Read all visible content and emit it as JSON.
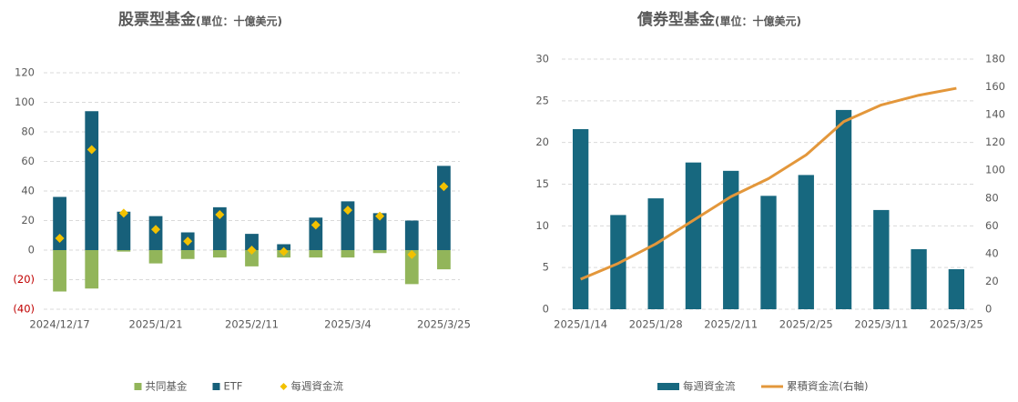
{
  "chart_data": [
    {
      "type": "bar",
      "title": "股票型基金",
      "unit": "(單位：十億美元)",
      "stacked": true,
      "grid": true,
      "categories": [
        "2024/12/17",
        null,
        null,
        "2025/1/21",
        null,
        null,
        "2025/2/11",
        null,
        null,
        "2025/3/4",
        null,
        null,
        "2025/3/25"
      ],
      "ylim": [
        -40,
        120
      ],
      "yticks": [
        {
          "value": -40,
          "label": "(40)"
        },
        {
          "value": -20,
          "label": "(20)"
        },
        0,
        20,
        40,
        60,
        80,
        100,
        120
      ],
      "negative_tick_color": "#c00000",
      "series": [
        {
          "name": "共同基金",
          "kind": "bar",
          "color": "#92b55a",
          "values": [
            -28,
            -26,
            -1,
            -9,
            -6,
            -5,
            -11,
            -5,
            -5,
            -5,
            -2,
            -23,
            -13
          ]
        },
        {
          "name": "ETF",
          "kind": "bar",
          "color": "#17607a",
          "values": [
            36,
            94,
            26,
            23,
            12,
            29,
            11,
            4,
            22,
            33,
            25,
            20,
            57
          ]
        },
        {
          "name": "每週資金流",
          "kind": "scatter",
          "color": "#f2c100",
          "values": [
            8,
            68,
            25,
            14,
            6,
            24,
            0,
            -1,
            17,
            27,
            23,
            -3,
            43
          ]
        }
      ]
    },
    {
      "type": "bar",
      "title": "債券型基金",
      "unit": "(單位：十億美元)",
      "stacked": false,
      "grid": true,
      "categories": [
        "2025/1/14",
        null,
        "2025/1/28",
        null,
        "2025/2/11",
        null,
        "2025/2/25",
        null,
        "2025/3/11",
        null,
        "2025/3/25"
      ],
      "ylim": [
        0,
        30
      ],
      "yticks": [
        0,
        5,
        10,
        15,
        20,
        25,
        30
      ],
      "y2lim": [
        0,
        180
      ],
      "y2ticks": [
        0,
        20,
        40,
        60,
        80,
        100,
        120,
        140,
        160,
        180
      ],
      "series": [
        {
          "name": "每週資金流",
          "kind": "bar",
          "color": "#17687f",
          "values": [
            21.6,
            11.3,
            13.3,
            17.6,
            16.6,
            13.6,
            16.1,
            23.9,
            11.9,
            7.2,
            4.8
          ]
        },
        {
          "name": "累積資金流(右軸)",
          "kind": "line",
          "axis": "y2",
          "color": "#e3973b",
          "values": [
            21.6,
            33,
            47,
            64,
            81,
            94,
            111,
            135,
            147,
            154,
            159
          ]
        }
      ]
    }
  ]
}
